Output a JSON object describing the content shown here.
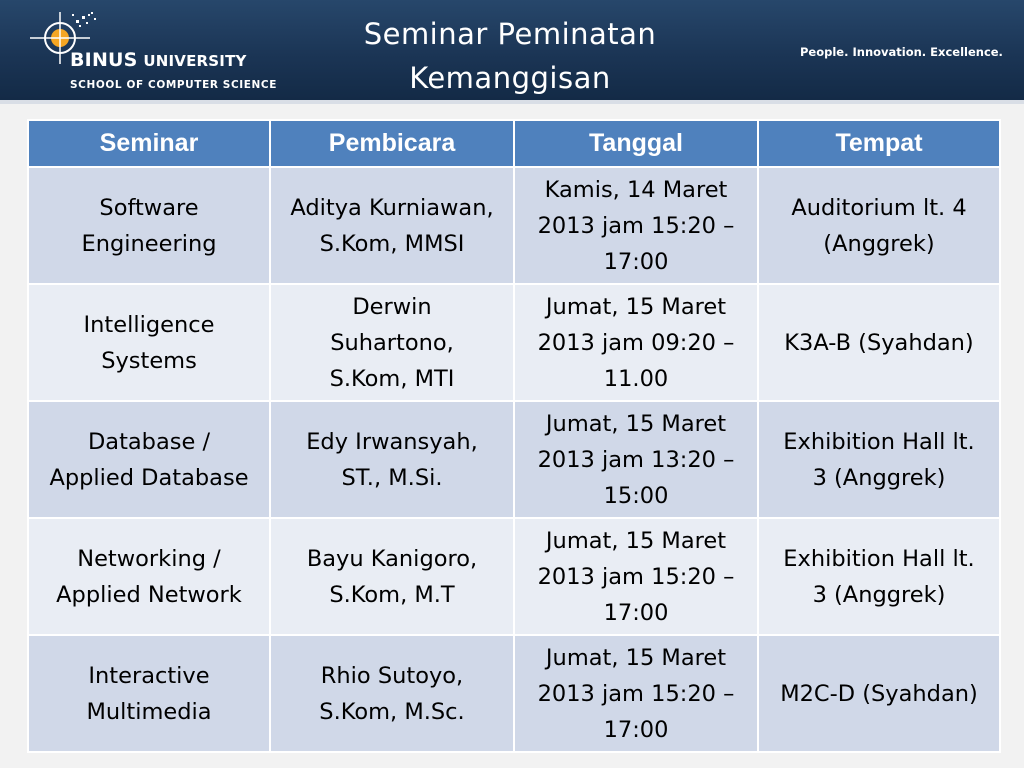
{
  "header": {
    "logo": {
      "name_bold": "BINUS",
      "name_rest": "UNIVERSITY",
      "school": "SCHOOL OF COMPUTER SCIENCE"
    },
    "title_line1": "Seminar Peminatan",
    "title_line2": "Kemanggisan",
    "tagline": "People. Innovation. Excellence."
  },
  "colors": {
    "header_bg": "#1b3555",
    "table_header_bg": "#4f81bd",
    "row_odd_bg": "#d0d8e8",
    "row_even_bg": "#e9edf4",
    "logo_accent": "#f5a623"
  },
  "table": {
    "columns": [
      "Seminar",
      "Pembicara",
      "Tanggal",
      "Tempat"
    ],
    "rows": [
      {
        "seminar": [
          "Software",
          "Engineering"
        ],
        "pembicara": [
          "Aditya Kurniawan,",
          "S.Kom, MMSI"
        ],
        "tanggal": [
          "Kamis, 14 Maret",
          "2013 jam 15:20 –",
          "17:00"
        ],
        "tempat": [
          "Auditorium lt. 4",
          "(Anggrek)"
        ]
      },
      {
        "seminar": [
          "Intelligence",
          "Systems"
        ],
        "pembicara": [
          "Derwin",
          "Suhartono,",
          "S.Kom, MTI"
        ],
        "tanggal": [
          "Jumat, 15 Maret",
          "2013 jam 09:20 –",
          "11.00"
        ],
        "tempat": [
          "K3A-B (Syahdan)"
        ]
      },
      {
        "seminar": [
          "Database /",
          "Applied Database"
        ],
        "pembicara": [
          "Edy Irwansyah,",
          "ST., M.Si."
        ],
        "tanggal": [
          "Jumat, 15 Maret",
          "2013 jam 13:20 –",
          "15:00"
        ],
        "tempat": [
          "Exhibition Hall lt.",
          "3 (Anggrek)"
        ]
      },
      {
        "seminar": [
          "Networking /",
          "Applied Network"
        ],
        "pembicara": [
          "Bayu Kanigoro,",
          "S.Kom, M.T"
        ],
        "tanggal": [
          "Jumat, 15 Maret",
          "2013 jam 15:20 –",
          "17:00"
        ],
        "tempat": [
          "Exhibition Hall lt.",
          "3 (Anggrek)"
        ]
      },
      {
        "seminar": [
          "Interactive",
          "Multimedia"
        ],
        "pembicara": [
          "Rhio Sutoyo,",
          "S.Kom, M.Sc."
        ],
        "tanggal": [
          "Jumat, 15 Maret",
          "2013 jam 15:20 –",
          "17:00"
        ],
        "tempat": [
          "M2C-D (Syahdan)"
        ]
      }
    ]
  }
}
